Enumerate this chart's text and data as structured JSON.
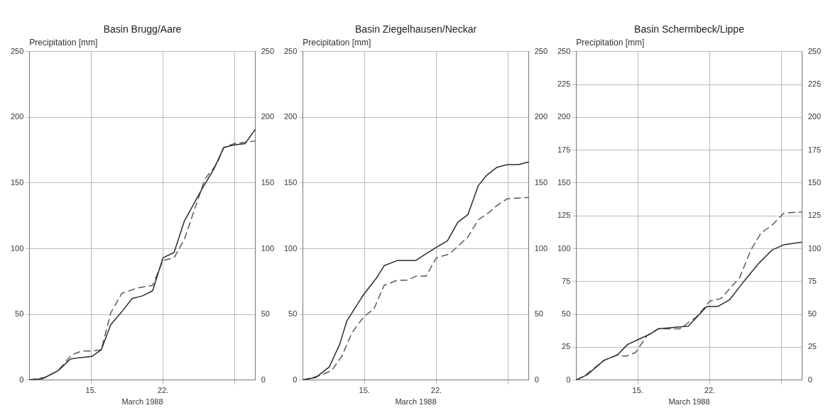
{
  "chart_data": [
    {
      "type": "line",
      "title": "Basin Brugg/Aare",
      "ylabel": "Precipitation [mm]",
      "xlabel": "March 1988",
      "grid": true,
      "xlim": [
        "1988-03-09",
        "1988-03-31"
      ],
      "xticks": [
        {
          "value": "1988-03-15",
          "label": "15."
        },
        {
          "value": "1988-03-22",
          "label": "22."
        },
        {
          "value": "1988-03-29",
          "label": null
        }
      ],
      "ylim": [
        0,
        250
      ],
      "yticks": [
        0,
        50,
        100,
        150,
        200,
        250
      ],
      "y2lim": [
        0,
        250
      ],
      "y2ticks": [
        0,
        50,
        100,
        150,
        200,
        250
      ],
      "legend": false,
      "series": [
        {
          "color": "#2b2b2b",
          "line_style": "solid",
          "x": [
            "1988-03-09",
            "1988-03-10T07:00",
            "1988-03-11T19:00",
            "1988-03-13",
            "1988-03-13T22:00",
            "1988-03-15T02:00",
            "1988-03-16",
            "1988-03-16T22:00",
            "1988-03-18",
            "1988-03-19",
            "1988-03-20",
            "1988-03-21",
            "1988-03-22",
            "1988-03-23T02:00",
            "1988-03-24T02:00",
            "1988-03-25T22:00",
            "1988-03-26T22:00",
            "1988-03-27T22:00",
            "1988-03-28T22:00",
            "1988-03-30",
            "1988-03-31"
          ],
          "values": [
            0,
            1,
            7,
            16,
            17,
            18,
            23,
            42,
            52,
            62,
            64,
            68,
            93,
            97,
            121,
            147,
            160,
            177,
            179,
            180,
            191
          ]
        },
        {
          "color": "#5a5a5a",
          "line_style": "dashed",
          "x": [
            "1988-03-09",
            "1988-03-10T12:00",
            "1988-03-11T19:00",
            "1988-03-13T02:00",
            "1988-03-14T02:00",
            "1988-03-15T02:00",
            "1988-03-16",
            "1988-03-16T22:00",
            "1988-03-18",
            "1988-03-19T12:00",
            "1988-03-21",
            "1988-03-22",
            "1988-03-23T02:00",
            "1988-03-24T02:00",
            "1988-03-26T02:00",
            "1988-03-27T05:00",
            "1988-03-27T22:00",
            "1988-03-28T22:00",
            "1988-03-30",
            "1988-03-31"
          ],
          "values": [
            0,
            2,
            7,
            19,
            22,
            22,
            23,
            51,
            66,
            70,
            72,
            91,
            93,
            107,
            153,
            164,
            177,
            180,
            181,
            182
          ]
        }
      ]
    },
    {
      "type": "line",
      "title": "Basin Ziegelhausen/Neckar",
      "ylabel": "Precipitation [mm]",
      "xlabel": "March 1988",
      "grid": true,
      "xlim": [
        "1988-03-09",
        "1988-03-31"
      ],
      "xticks": [
        {
          "value": "1988-03-15",
          "label": "15."
        },
        {
          "value": "1988-03-22",
          "label": "22."
        },
        {
          "value": "1988-03-29",
          "label": null
        }
      ],
      "ylim": [
        0,
        250
      ],
      "yticks": [
        0,
        50,
        100,
        150,
        200,
        250
      ],
      "y2lim": [
        0,
        250
      ],
      "y2ticks": [
        0,
        50,
        100,
        150,
        200,
        250
      ],
      "legend": false,
      "series": [
        {
          "color": "#2b2b2b",
          "line_style": "solid",
          "x": [
            "1988-03-09",
            "1988-03-10T07:00",
            "1988-03-11T14:00",
            "1988-03-12T14:00",
            "1988-03-13T07:00",
            "1988-03-14T22:00",
            "1988-03-16T05:00",
            "1988-03-16T22:00",
            "1988-03-18T05:00",
            "1988-03-20",
            "1988-03-20T19:00",
            "1988-03-22",
            "1988-03-23T02:00",
            "1988-03-24T02:00",
            "1988-03-25T02:00",
            "1988-03-26T02:00",
            "1988-03-26T22:00",
            "1988-03-27T22:00",
            "1988-03-28T22:00",
            "1988-03-30",
            "1988-03-31"
          ],
          "values": [
            0,
            2,
            10,
            27,
            45,
            65,
            78,
            87,
            91,
            91,
            95,
            101,
            106,
            120,
            126,
            148,
            156,
            162,
            164,
            164,
            166
          ]
        },
        {
          "color": "#5a5a5a",
          "line_style": "dashed",
          "x": [
            "1988-03-09",
            "1988-03-10T12:00",
            "1988-03-11T19:00",
            "1988-03-12T19:00",
            "1988-03-13T19:00",
            "1988-03-14T22:00",
            "1988-03-15T22:00",
            "1988-03-16T22:00",
            "1988-03-18T05:00",
            "1988-03-19T05:00",
            "1988-03-20",
            "1988-03-21",
            "1988-03-22",
            "1988-03-23T07:00",
            "1988-03-25T02:00",
            "1988-03-26T02:00",
            "1988-03-27T05:00",
            "1988-03-27T22:00",
            "1988-03-28T22:00",
            "1988-03-31"
          ],
          "values": [
            0,
            3,
            7,
            18,
            36,
            48,
            54,
            72,
            76,
            76,
            79,
            79,
            93,
            96,
            109,
            122,
            128,
            133,
            138,
            139
          ]
        }
      ]
    },
    {
      "type": "line",
      "title": "Basin Schermbeck/Lippe",
      "ylabel": "Precipitation [mm]",
      "xlabel": "March 1988",
      "grid": true,
      "xlim": [
        "1988-03-09",
        "1988-03-31"
      ],
      "xticks": [
        {
          "value": "1988-03-15",
          "label": "15."
        },
        {
          "value": "1988-03-22",
          "label": "22."
        },
        {
          "value": "1988-03-29",
          "label": null
        }
      ],
      "ylim": [
        0,
        250
      ],
      "yticks": [
        0,
        25,
        50,
        75,
        100,
        125,
        150,
        175,
        200,
        225,
        250
      ],
      "y2lim": [
        0,
        250
      ],
      "y2ticks": [
        0,
        25,
        50,
        75,
        100,
        125,
        150,
        175,
        200,
        225,
        250
      ],
      "legend": false,
      "series": [
        {
          "color": "#2b2b2b",
          "line_style": "solid",
          "x": [
            "1988-03-09",
            "1988-03-10T02:00",
            "1988-03-11T17:00",
            "1988-03-13",
            "1988-03-14",
            "1988-03-15T02:00",
            "1988-03-16T05:00",
            "1988-03-17",
            "1988-03-18T12:00",
            "1988-03-19T22:00",
            "1988-03-21T17:00",
            "1988-03-22T19:00",
            "1988-03-23T22:00",
            "1988-03-25T10:00",
            "1988-03-26T19:00",
            "1988-03-28T02:00",
            "1988-03-29T05:00",
            "1988-03-31"
          ],
          "values": [
            0,
            4,
            15,
            19,
            27,
            31,
            35,
            39,
            40,
            41,
            56,
            56,
            61,
            76,
            89,
            99,
            103,
            105
          ]
        },
        {
          "color": "#5a5a5a",
          "line_style": "dashed",
          "x": [
            "1988-03-09",
            "1988-03-09T19:00",
            "1988-03-11T17:00",
            "1988-03-13",
            "1988-03-13T19:00",
            "1988-03-14T19:00",
            "1988-03-15T22:00",
            "1988-03-17",
            "1988-03-19T02:00",
            "1988-03-20T17:00",
            "1988-03-22",
            "1988-03-23T02:00",
            "1988-03-24T22:00",
            "1988-03-26",
            "1988-03-27",
            "1988-03-28T02:00",
            "1988-03-29T05:00",
            "1988-03-31"
          ],
          "values": [
            0,
            3,
            15,
            19,
            18,
            21,
            34,
            39,
            39,
            48,
            60,
            62,
            78,
            99,
            112,
            118,
            127,
            128
          ]
        }
      ]
    }
  ]
}
